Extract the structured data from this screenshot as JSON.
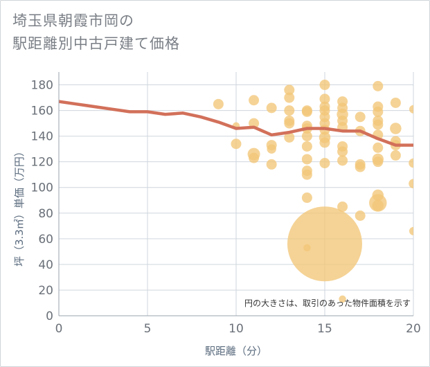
{
  "title_line1": "埼玉県朝霞市岡の",
  "title_line2": "駅距離別中古戸建て価格",
  "note": "円の大きさは、取引のあった物件面積を示す",
  "colors": {
    "bubble": "#f2c679",
    "line": "#d2705a",
    "grid": "#cfd6de",
    "axis": "#9aa3ad"
  },
  "chart_data": {
    "type": "scatter",
    "xlabel": "駅距離（分）",
    "ylabel": "坪（3.3㎡）単価（万円）",
    "xlim": [
      0,
      20
    ],
    "ylim": [
      0,
      190
    ],
    "xticks": [
      "0",
      "5",
      "10",
      "15",
      "20"
    ],
    "yticks": [
      "0",
      "20",
      "40",
      "60",
      "80",
      "100",
      "120",
      "140",
      "160",
      "180"
    ],
    "trend_line": {
      "x": [
        0,
        1,
        2,
        3,
        4,
        5,
        6,
        7,
        8,
        9,
        10,
        11,
        12,
        13,
        14,
        15,
        16,
        17,
        18,
        19,
        20
      ],
      "y": [
        167,
        165,
        163,
        161,
        159,
        159,
        157,
        158,
        155,
        151,
        146,
        147,
        141,
        143,
        146,
        146,
        144,
        144,
        138,
        133,
        133
      ]
    },
    "points": [
      {
        "x": 9,
        "y": 165,
        "s": 1
      },
      {
        "x": 10,
        "y": 134,
        "s": 1
      },
      {
        "x": 10,
        "y": 148,
        "s": 0.7
      },
      {
        "x": 11,
        "y": 168,
        "s": 1
      },
      {
        "x": 11,
        "y": 150,
        "s": 1
      },
      {
        "x": 11,
        "y": 126,
        "s": 1.2
      },
      {
        "x": 11,
        "y": 123,
        "s": 1
      },
      {
        "x": 12,
        "y": 162,
        "s": 1
      },
      {
        "x": 12,
        "y": 133,
        "s": 1
      },
      {
        "x": 12,
        "y": 130,
        "s": 0.9
      },
      {
        "x": 12,
        "y": 118,
        "s": 1
      },
      {
        "x": 13,
        "y": 176,
        "s": 1
      },
      {
        "x": 13,
        "y": 170,
        "s": 1
      },
      {
        "x": 13,
        "y": 160,
        "s": 1
      },
      {
        "x": 13,
        "y": 152,
        "s": 1
      },
      {
        "x": 13,
        "y": 150,
        "s": 1
      },
      {
        "x": 13,
        "y": 139,
        "s": 1
      },
      {
        "x": 14,
        "y": 160,
        "s": 1
      },
      {
        "x": 14,
        "y": 159,
        "s": 1
      },
      {
        "x": 14,
        "y": 148,
        "s": 1
      },
      {
        "x": 14,
        "y": 146,
        "s": 1
      },
      {
        "x": 14,
        "y": 140,
        "s": 1
      },
      {
        "x": 14,
        "y": 132,
        "s": 1
      },
      {
        "x": 14,
        "y": 122,
        "s": 1
      },
      {
        "x": 14,
        "y": 113,
        "s": 1
      },
      {
        "x": 14,
        "y": 110,
        "s": 1
      },
      {
        "x": 14,
        "y": 92,
        "s": 1
      },
      {
        "x": 14,
        "y": 53,
        "s": 0.7
      },
      {
        "x": 15,
        "y": 180,
        "s": 1
      },
      {
        "x": 15,
        "y": 169,
        "s": 1
      },
      {
        "x": 15,
        "y": 163,
        "s": 1
      },
      {
        "x": 15,
        "y": 160,
        "s": 1
      },
      {
        "x": 15,
        "y": 155,
        "s": 1
      },
      {
        "x": 15,
        "y": 150,
        "s": 1
      },
      {
        "x": 15,
        "y": 145,
        "s": 1
      },
      {
        "x": 15,
        "y": 139,
        "s": 1.1
      },
      {
        "x": 15,
        "y": 135,
        "s": 1
      },
      {
        "x": 15,
        "y": 119,
        "s": 1
      },
      {
        "x": 15,
        "y": 56,
        "s": 7.2
      },
      {
        "x": 16,
        "y": 167,
        "s": 1
      },
      {
        "x": 16,
        "y": 162,
        "s": 1
      },
      {
        "x": 16,
        "y": 157,
        "s": 1.1
      },
      {
        "x": 16,
        "y": 152,
        "s": 1
      },
      {
        "x": 16,
        "y": 147,
        "s": 1
      },
      {
        "x": 16,
        "y": 132,
        "s": 1
      },
      {
        "x": 16,
        "y": 128,
        "s": 1
      },
      {
        "x": 16,
        "y": 121,
        "s": 1
      },
      {
        "x": 16,
        "y": 85,
        "s": 1
      },
      {
        "x": 16,
        "y": 13,
        "s": 0.7
      },
      {
        "x": 17,
        "y": 155,
        "s": 1
      },
      {
        "x": 17,
        "y": 144,
        "s": 1
      },
      {
        "x": 17,
        "y": 118,
        "s": 1
      },
      {
        "x": 17,
        "y": 116,
        "s": 1
      },
      {
        "x": 17,
        "y": 78,
        "s": 1
      },
      {
        "x": 18,
        "y": 179,
        "s": 1
      },
      {
        "x": 18,
        "y": 163,
        "s": 1
      },
      {
        "x": 18,
        "y": 159,
        "s": 1
      },
      {
        "x": 18,
        "y": 152,
        "s": 1
      },
      {
        "x": 18,
        "y": 149,
        "s": 1
      },
      {
        "x": 18,
        "y": 141,
        "s": 1
      },
      {
        "x": 18,
        "y": 131,
        "s": 1
      },
      {
        "x": 18,
        "y": 122,
        "s": 1.1
      },
      {
        "x": 18,
        "y": 120,
        "s": 1
      },
      {
        "x": 18,
        "y": 94,
        "s": 1.1
      },
      {
        "x": 18,
        "y": 88,
        "s": 1.7
      },
      {
        "x": 18,
        "y": 86,
        "s": 1.1
      },
      {
        "x": 19,
        "y": 166,
        "s": 1
      },
      {
        "x": 19,
        "y": 146,
        "s": 1.1
      },
      {
        "x": 19,
        "y": 136,
        "s": 1
      },
      {
        "x": 19,
        "y": 133,
        "s": 1
      },
      {
        "x": 19,
        "y": 125,
        "s": 1
      },
      {
        "x": 20,
        "y": 161,
        "s": 0.8
      },
      {
        "x": 20,
        "y": 119,
        "s": 0.9
      },
      {
        "x": 20,
        "y": 103,
        "s": 0.9
      },
      {
        "x": 20,
        "y": 66,
        "s": 0.8
      }
    ]
  }
}
